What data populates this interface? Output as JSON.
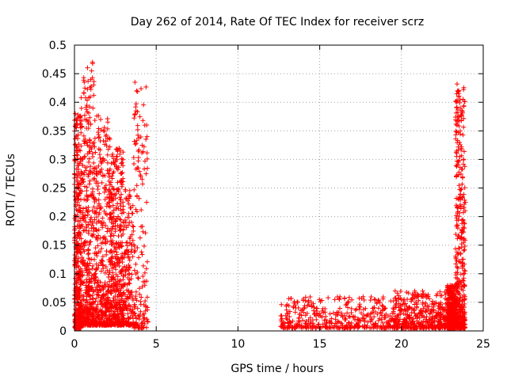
{
  "chart_data": {
    "type": "scatter",
    "title": "Day 262 of 2014, Rate Of TEC Index for receiver scrz",
    "xlabel": "GPS time / hours",
    "ylabel": "ROTI / TECUs",
    "xlim": [
      0,
      25
    ],
    "ylim": [
      0,
      0.5
    ],
    "xticks": [
      0,
      5,
      10,
      15,
      20,
      25
    ],
    "xtick_labels": [
      "0",
      "5",
      "10",
      "15",
      "20",
      "25"
    ],
    "yticks": [
      0,
      0.05,
      0.1,
      0.15,
      0.2,
      0.25,
      0.3,
      0.35,
      0.4,
      0.45,
      0.5
    ],
    "ytick_labels": [
      "0",
      "0.05",
      "0.1",
      "0.15",
      "0.2",
      "0.25",
      "0.3",
      "0.35",
      "0.4",
      "0.45",
      "0.5"
    ],
    "grid": true,
    "marker": "+",
    "marker_color": "#ff0000",
    "series": [
      {
        "name": "ROTI",
        "segments": [
          {
            "x_range": [
              0.0,
              0.4
            ],
            "y_range": [
              0.005,
              0.38
            ],
            "density": "dense"
          },
          {
            "x_range": [
              0.4,
              1.2
            ],
            "y_range": [
              0.01,
              0.47
            ],
            "density": "dense"
          },
          {
            "x_range": [
              1.2,
              2.2
            ],
            "y_range": [
              0.01,
              0.38
            ],
            "density": "dense"
          },
          {
            "x_range": [
              2.2,
              3.0
            ],
            "y_range": [
              0.01,
              0.32
            ],
            "density": "dense"
          },
          {
            "x_range": [
              3.0,
              3.6
            ],
            "y_range": [
              0.01,
              0.25
            ],
            "density": "medium"
          },
          {
            "x_range": [
              3.6,
              4.5
            ],
            "y_range": [
              0.005,
              0.43
            ],
            "density": "medium"
          },
          {
            "x_range": [
              12.6,
              19.5
            ],
            "y_range": [
              0.005,
              0.06
            ],
            "density": "dense"
          },
          {
            "x_range": [
              19.5,
              22.8
            ],
            "y_range": [
              0.005,
              0.07
            ],
            "density": "dense"
          },
          {
            "x_range": [
              22.8,
              23.3
            ],
            "y_range": [
              0.005,
              0.08
            ],
            "density": "dense"
          },
          {
            "x_range": [
              23.3,
              23.9
            ],
            "y_range": [
              0.005,
              0.43
            ],
            "density": "dense"
          }
        ],
        "highlights": [
          {
            "x": 1.1,
            "y": 0.47
          },
          {
            "x": 1.05,
            "y": 0.455
          },
          {
            "x": 1.0,
            "y": 0.44
          },
          {
            "x": 0.6,
            "y": 0.435
          },
          {
            "x": 3.7,
            "y": 0.435
          },
          {
            "x": 3.8,
            "y": 0.42
          },
          {
            "x": 23.4,
            "y": 0.432
          },
          {
            "x": 23.5,
            "y": 0.41
          },
          {
            "x": 23.6,
            "y": 0.39
          },
          {
            "x": 0.05,
            "y": 0.38
          },
          {
            "x": 0.15,
            "y": 0.36
          },
          {
            "x": 23.4,
            "y": 0.36
          },
          {
            "x": 1.6,
            "y": 0.37
          },
          {
            "x": 4.3,
            "y": 0.36
          },
          {
            "x": 23.8,
            "y": 0.3
          },
          {
            "x": 23.9,
            "y": 0.225
          }
        ]
      }
    ]
  }
}
